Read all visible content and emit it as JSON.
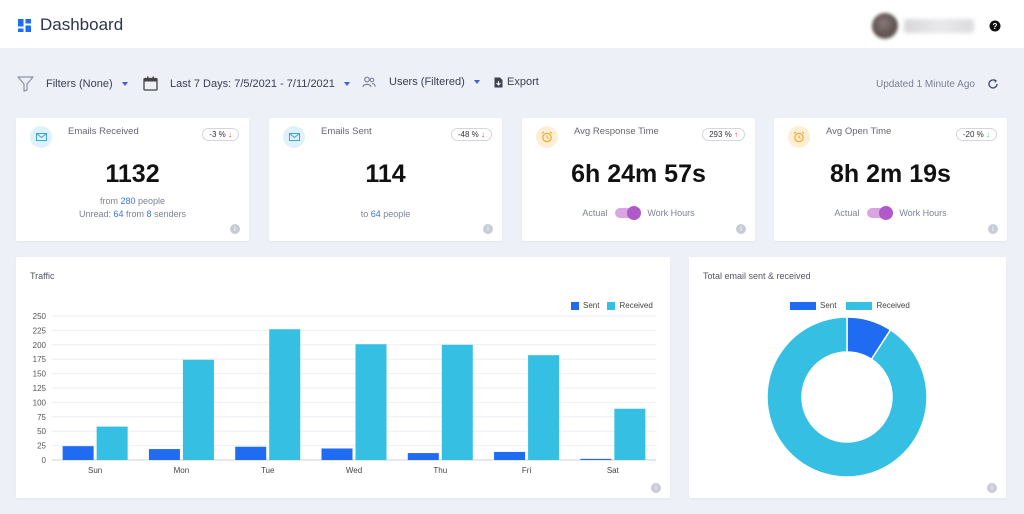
{
  "header": {
    "title": "Dashboard",
    "help_icon": "question-circle-icon"
  },
  "toolbar": {
    "filters_label": "Filters (None)",
    "date_label": "Last 7 Days: 7/5/2021 - 7/11/2021",
    "users_label": "Users (Filtered)",
    "export_label": "Export",
    "updated_label": "Updated 1 Minute Ago"
  },
  "colors": {
    "sent": "#1f6bf2",
    "received": "#34bfe3",
    "accent": "#3b73e8",
    "toggle": "#b05ac9"
  },
  "kpis": [
    {
      "title": "Emails Received",
      "badge": "-3 %",
      "badge_arrow": "↓",
      "value": "1132",
      "line1_prefix": "from ",
      "line1_link": "280",
      "line1_suffix": " people",
      "line2_prefix": "Unread: ",
      "line2_link1": "64",
      "line2_mid": " from ",
      "line2_link2": "8",
      "line2_suffix": " senders"
    },
    {
      "title": "Emails Sent",
      "badge": "-48 %",
      "badge_arrow": "↓",
      "value": "114",
      "line1_prefix": "to ",
      "line1_link": "64",
      "line1_suffix": " people"
    },
    {
      "title": "Avg Response Time",
      "badge": "293 %",
      "badge_arrow": "↑",
      "value": "6h 24m 57s",
      "toggle_left": "Actual",
      "toggle_right": "Work Hours"
    },
    {
      "title": "Avg Open Time",
      "badge": "-20 %",
      "badge_arrow": "↓",
      "value": "8h 2m 19s",
      "toggle_left": "Actual",
      "toggle_right": "Work Hours"
    }
  ],
  "traffic": {
    "title": "Traffic"
  },
  "donut": {
    "title": "Total email sent & received"
  },
  "chart_data": [
    {
      "type": "bar",
      "title": "Traffic",
      "categories": [
        "Sun",
        "Mon",
        "Tue",
        "Wed",
        "Thu",
        "Fri",
        "Sat"
      ],
      "series": [
        {
          "name": "Sent",
          "values": [
            24,
            19,
            23,
            20,
            12,
            14,
            2
          ]
        },
        {
          "name": "Received",
          "values": [
            58,
            174,
            227,
            201,
            200,
            182,
            89
          ]
        }
      ],
      "yticks": [
        0,
        25,
        50,
        75,
        100,
        125,
        150,
        175,
        200,
        225,
        250
      ],
      "ylim": [
        0,
        250
      ],
      "grid": true,
      "legend": "top-right"
    },
    {
      "type": "pie",
      "title": "Total email sent & received",
      "labels": [
        "Sent",
        "Received"
      ],
      "values": [
        114,
        1132
      ],
      "donut": true,
      "legend": "top"
    }
  ]
}
